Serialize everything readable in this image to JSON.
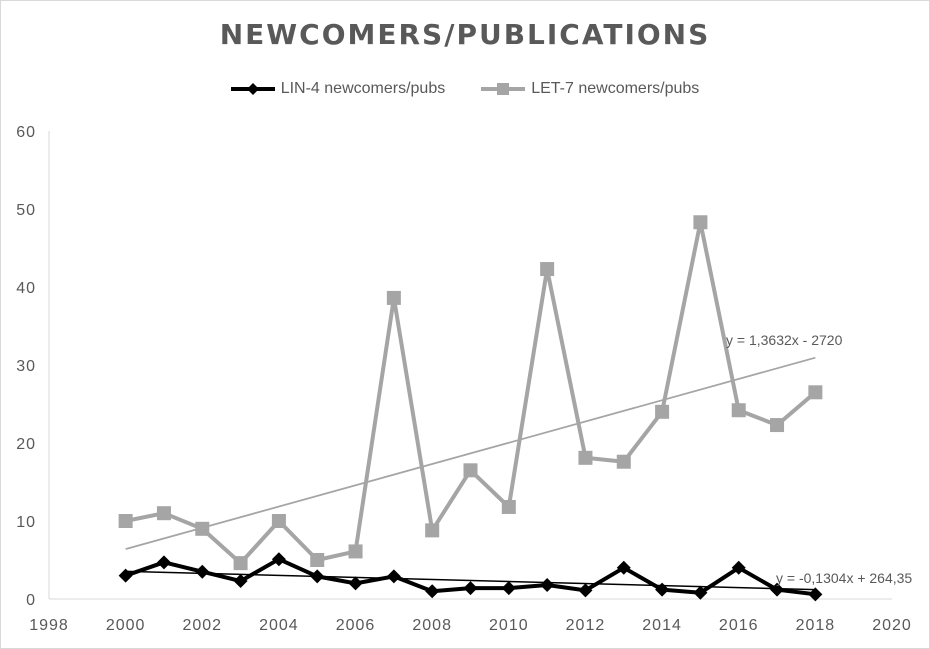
{
  "chart_data": {
    "type": "scatter",
    "title": "NEWCOMERS/PUBLICATIONS",
    "xlim": [
      1998,
      2020
    ],
    "ylim": [
      0,
      60
    ],
    "x_ticks": [
      "1998",
      "2000",
      "2002",
      "2004",
      "2006",
      "2008",
      "2010",
      "2012",
      "2014",
      "2016",
      "2018",
      "2020"
    ],
    "y_ticks": [
      "0",
      "10",
      "20",
      "30",
      "40",
      "50",
      "60"
    ],
    "grid": false,
    "legend_position": "top",
    "series": [
      {
        "name": "LIN-4 newcomers/pubs",
        "marker": "diamond",
        "color": "#000000",
        "x": [
          2000,
          2001,
          2002,
          2003,
          2004,
          2005,
          2006,
          2007,
          2008,
          2009,
          2010,
          2011,
          2012,
          2013,
          2014,
          2015,
          2016,
          2017,
          2018
        ],
        "y": [
          3.0,
          4.7,
          3.5,
          2.3,
          5.1,
          2.9,
          2.0,
          2.9,
          1.0,
          1.4,
          1.4,
          1.8,
          1.1,
          4.0,
          1.2,
          0.8,
          4.0,
          1.2,
          0.6
        ],
        "trendline": {
          "slope": -0.1304,
          "intercept": 264.35,
          "label": "y = -0,1304x + 264,35",
          "color": "#000000"
        }
      },
      {
        "name": "LET-7 newcomers/pubs",
        "marker": "square",
        "color": "#a5a5a5",
        "x": [
          2000,
          2001,
          2002,
          2003,
          2004,
          2005,
          2006,
          2007,
          2008,
          2009,
          2010,
          2011,
          2012,
          2013,
          2014,
          2015,
          2016,
          2017,
          2018
        ],
        "y": [
          10.0,
          11.0,
          9.0,
          4.6,
          10.0,
          5.0,
          6.1,
          38.6,
          8.8,
          16.5,
          11.8,
          42.3,
          18.1,
          17.6,
          24.0,
          48.3,
          24.2,
          22.3,
          26.5
        ],
        "trendline": {
          "slope": 1.3632,
          "intercept": -2720,
          "label": "y = 1,3632x - 2720",
          "color": "#a5a5a5"
        }
      }
    ]
  }
}
